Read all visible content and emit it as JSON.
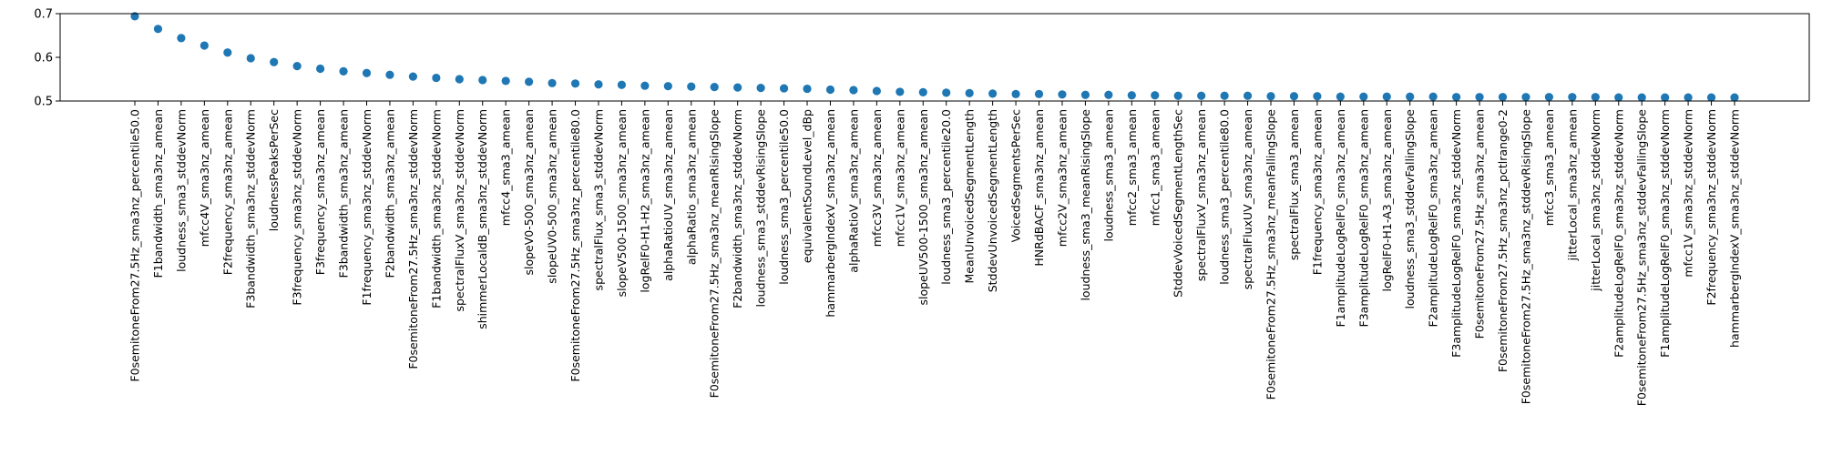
{
  "chart_data": {
    "type": "scatter",
    "title": "",
    "xlabel": "",
    "ylabel": "",
    "ylim": [
      0.5,
      0.7
    ],
    "yticks": [
      "0.5",
      "0.6",
      "0.7"
    ],
    "grid": false,
    "color": "#1f77b4",
    "categories": [
      "F0semitoneFrom27.5Hz_sma3nz_percentile50.0",
      "F1bandwidth_sma3nz_amean",
      "loudness_sma3_stddevNorm",
      "mfcc4V_sma3nz_amean",
      "F2frequency_sma3nz_amean",
      "F3bandwidth_sma3nz_stddevNorm",
      "loudnessPeaksPerSec",
      "F3frequency_sma3nz_stddevNorm",
      "F3frequency_sma3nz_amean",
      "F3bandwidth_sma3nz_amean",
      "F1frequency_sma3nz_stddevNorm",
      "F2bandwidth_sma3nz_amean",
      "F0semitoneFrom27.5Hz_sma3nz_stddevNorm",
      "F1bandwidth_sma3nz_stddevNorm",
      "spectralFluxV_sma3nz_stddevNorm",
      "shimmerLocaldB_sma3nz_stddevNorm",
      "mfcc4_sma3_amean",
      "slopeV0-500_sma3nz_amean",
      "slopeUV0-500_sma3nz_amean",
      "F0semitoneFrom27.5Hz_sma3nz_percentile80.0",
      "spectralFlux_sma3_stddevNorm",
      "slopeV500-1500_sma3nz_amean",
      "logRelF0-H1-H2_sma3nz_amean",
      "alphaRatioUV_sma3nz_amean",
      "alphaRatio_sma3nz_amean",
      "F0semitoneFrom27.5Hz_sma3nz_meanRisingSlope",
      "F2bandwidth_sma3nz_stddevNorm",
      "loudness_sma3_stddevRisingSlope",
      "loudness_sma3_percentile50.0",
      "equivalentSoundLevel_dBp",
      "hammarbergIndexV_sma3nz_amean",
      "alphaRatioV_sma3nz_amean",
      "mfcc3V_sma3nz_amean",
      "mfcc1V_sma3nz_amean",
      "slopeUV500-1500_sma3nz_amean",
      "loudness_sma3_percentile20.0",
      "MeanUnvoicedSegmentLength",
      "StddevUnvoicedSegmentLength",
      "VoicedSegmentsPerSec",
      "HNRdBACF_sma3nz_amean",
      "mfcc2V_sma3nz_amean",
      "loudness_sma3_meanRisingSlope",
      "loudness_sma3_amean",
      "mfcc2_sma3_amean",
      "mfcc1_sma3_amean",
      "StddevVoicedSegmentLengthSec",
      "spectralFluxV_sma3nz_amean",
      "loudness_sma3_percentile80.0",
      "spectralFluxUV_sma3nz_amean",
      "F0semitoneFrom27.5Hz_sma3nz_meanFallingSlope",
      "spectralFlux_sma3_amean",
      "F1frequency_sma3nz_amean",
      "F1amplitudeLogRelF0_sma3nz_amean",
      "F3amplitudeLogRelF0_sma3nz_amean",
      "logRelF0-H1-A3_sma3nz_amean",
      "loudness_sma3_stddevFallingSlope",
      "F2amplitudeLogRelF0_sma3nz_amean",
      "F3amplitudeLogRelF0_sma3nz_stddevNorm",
      "F0semitoneFrom27.5Hz_sma3nz_amean",
      "F0semitoneFrom27.5Hz_sma3nz_pctlrange0-2",
      "F0semitoneFrom27.5Hz_sma3nz_stddevRisingSlope",
      "mfcc3_sma3_amean",
      "jitterLocal_sma3nz_amean",
      "jitterLocal_sma3nz_stddevNorm",
      "F2amplitudeLogRelF0_sma3nz_stddevNorm",
      "F0semitoneFrom27.5Hz_sma3nz_stddevFallingSlope",
      "F1amplitudeLogRelF0_sma3nz_stddevNorm",
      "mfcc1V_sma3nz_stddevNorm",
      "F2frequency_sma3nz_stddevNorm",
      "hammarbergIndexV_sma3nz_stddevNorm"
    ],
    "values": [
      0.694,
      0.665,
      0.644,
      0.627,
      0.611,
      0.598,
      0.589,
      0.58,
      0.574,
      0.568,
      0.564,
      0.56,
      0.556,
      0.553,
      0.55,
      0.548,
      0.546,
      0.544,
      0.541,
      0.54,
      0.538,
      0.537,
      0.535,
      0.534,
      0.533,
      0.532,
      0.531,
      0.53,
      0.529,
      0.528,
      0.526,
      0.525,
      0.523,
      0.521,
      0.52,
      0.519,
      0.518,
      0.517,
      0.516,
      0.516,
      0.515,
      0.514,
      0.514,
      0.513,
      0.513,
      0.512,
      0.512,
      0.512,
      0.512,
      0.511,
      0.511,
      0.511,
      0.51,
      0.51,
      0.51,
      0.51,
      0.51,
      0.509,
      0.509,
      0.509,
      0.509,
      0.509,
      0.509,
      0.509,
      0.508,
      0.508,
      0.508,
      0.508,
      0.508,
      0.508
    ]
  }
}
